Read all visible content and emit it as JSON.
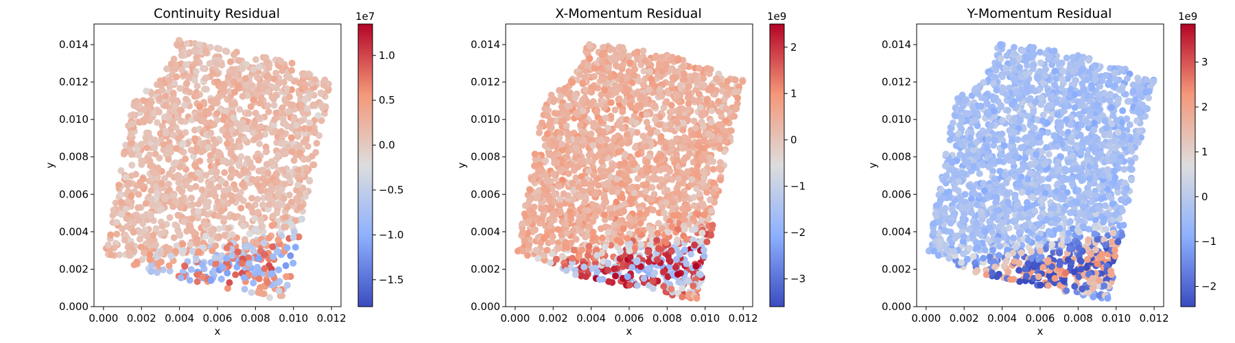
{
  "figure": {
    "panel_count": 3
  },
  "chart_data": [
    {
      "type": "scatter",
      "title": "Continuity Residual",
      "xlabel": "x",
      "ylabel": "y",
      "xlim": [
        -0.0005,
        0.0125
      ],
      "ylim": [
        0.0,
        0.0151
      ],
      "xticks": [
        "0.000",
        "0.002",
        "0.004",
        "0.006",
        "0.008",
        "0.010",
        "0.012"
      ],
      "yticks": [
        "0.000",
        "0.002",
        "0.004",
        "0.006",
        "0.008",
        "0.010",
        "0.012",
        "0.014"
      ],
      "colormap": "coolwarm",
      "colorbar": {
        "min": -1.8,
        "max": 1.35,
        "ticks": [
          "−1.5",
          "−1.0",
          "−0.5",
          "0.0",
          "0.5",
          "1.0"
        ],
        "tick_values": [
          -1.5,
          -1.0,
          -0.5,
          0.0,
          0.5,
          1.0
        ],
        "offset_label": "1e7"
      },
      "domain_description": "point cloud in rotated square with quarter-circle cutouts at corners",
      "color_bias": 0.62,
      "grid": false
    },
    {
      "type": "scatter",
      "title": "X-Momentum Residual",
      "xlabel": "x",
      "ylabel": "y",
      "xlim": [
        -0.0005,
        0.0125
      ],
      "ylim": [
        0.0,
        0.0151
      ],
      "xticks": [
        "0.000",
        "0.002",
        "0.004",
        "0.006",
        "0.008",
        "0.010",
        "0.012"
      ],
      "yticks": [
        "0.000",
        "0.002",
        "0.004",
        "0.006",
        "0.008",
        "0.010",
        "0.012",
        "0.014"
      ],
      "colormap": "coolwarm",
      "colorbar": {
        "min": -3.6,
        "max": 2.5,
        "ticks": [
          "−3",
          "−2",
          "−1",
          "0",
          "1",
          "2"
        ],
        "tick_values": [
          -3,
          -2,
          -1,
          0,
          1,
          2
        ],
        "offset_label": "1e9"
      },
      "color_bias": 0.66,
      "grid": false
    },
    {
      "type": "scatter",
      "title": "Y-Momentum Residual",
      "xlabel": "x",
      "ylabel": "y",
      "xlim": [
        -0.0005,
        0.0125
      ],
      "ylim": [
        0.0,
        0.0151
      ],
      "xticks": [
        "0.000",
        "0.002",
        "0.004",
        "0.006",
        "0.008",
        "0.010",
        "0.012"
      ],
      "yticks": [
        "0.000",
        "0.002",
        "0.004",
        "0.006",
        "0.008",
        "0.010",
        "0.012",
        "0.014"
      ],
      "colormap": "coolwarm",
      "colorbar": {
        "min": -2.45,
        "max": 3.85,
        "ticks": [
          "−2",
          "−1",
          "0",
          "1",
          "2",
          "3"
        ],
        "tick_values": [
          -2,
          -1,
          0,
          1,
          2,
          3
        ],
        "offset_label": "1e9"
      },
      "color_bias": 0.33,
      "grid": false
    }
  ]
}
